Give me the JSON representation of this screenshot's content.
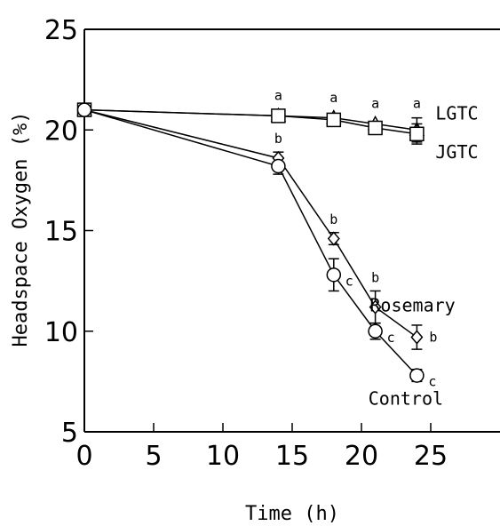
{
  "chart_data": {
    "type": "line",
    "title": "",
    "xlabel": "Time (h)",
    "ylabel": "Headspace Oxygen (%)",
    "xlim": [
      0,
      30
    ],
    "ylim": [
      5,
      25
    ],
    "xticks": [
      0,
      5,
      10,
      15,
      20,
      25
    ],
    "yticks": [
      5,
      10,
      15,
      20,
      25
    ],
    "x": [
      0,
      14,
      18,
      21,
      24
    ],
    "series": [
      {
        "name": "LGTC",
        "marker": "triangle",
        "values": [
          21.0,
          20.7,
          20.6,
          20.3,
          20.0
        ],
        "errors": [
          0.1,
          0.15,
          0.15,
          0.2,
          0.6
        ],
        "sig": [
          "",
          "a",
          "a",
          "a",
          "a"
        ]
      },
      {
        "name": "JGTC",
        "marker": "square",
        "values": [
          21.0,
          20.7,
          20.5,
          20.1,
          19.8
        ],
        "errors": [
          0.1,
          0.15,
          0.15,
          0.2,
          0.5
        ],
        "sig": [
          "",
          "",
          "",
          "",
          ""
        ]
      },
      {
        "name": "Rosemary",
        "marker": "diamond",
        "values": [
          21.0,
          18.6,
          14.6,
          11.2,
          9.7
        ],
        "errors": [
          0.1,
          0.3,
          0.3,
          0.8,
          0.6
        ],
        "sig": [
          "",
          "b",
          "b",
          "b",
          "b"
        ]
      },
      {
        "name": "Control",
        "marker": "circle",
        "values": [
          21.0,
          18.2,
          12.8,
          10.0,
          7.8
        ],
        "errors": [
          0.1,
          0.4,
          0.8,
          0.4,
          0.3
        ],
        "sig": [
          "",
          "",
          "c",
          "c",
          "c"
        ]
      }
    ],
    "grid": false,
    "legend": "none"
  }
}
